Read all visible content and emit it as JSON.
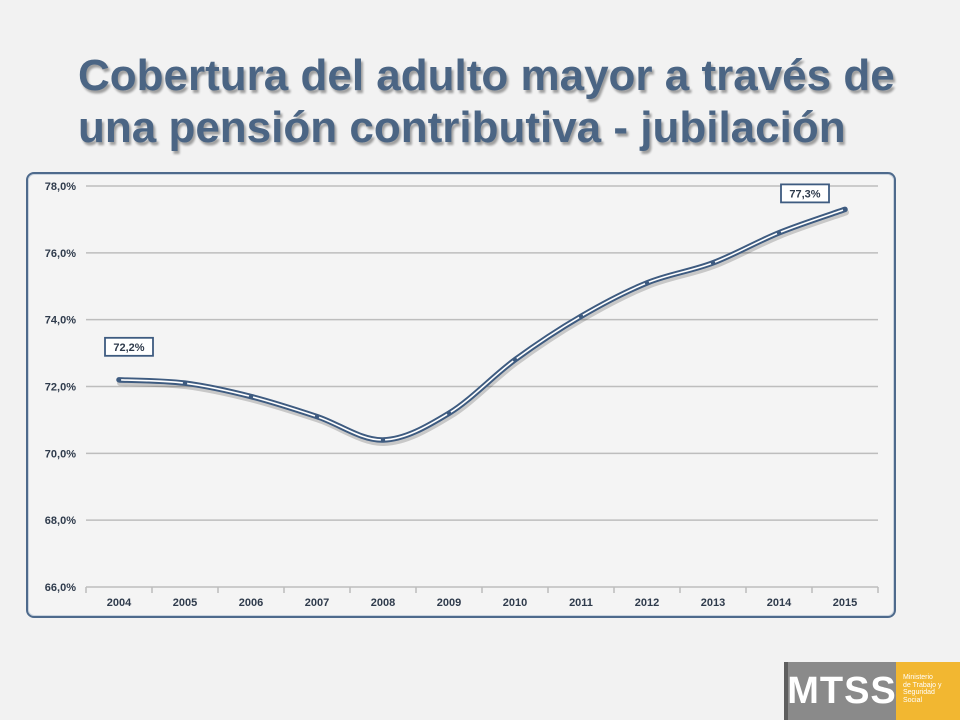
{
  "slide": {
    "title": "Cobertura del adulto mayor a través de una pensión contributiva - jubilación"
  },
  "logo": {
    "acronym": "MTSS",
    "name": "Ministerio\nde Trabajo y\nSeguridad\nSocial",
    "colors": {
      "mark": "#8a8a8a",
      "text_block": "#f2b731"
    }
  },
  "colors": {
    "title": "#4b6584",
    "line": "#3e5b80",
    "frame": "#4e6a8c",
    "grid": "#bdbdbd"
  },
  "chart_data": {
    "type": "line",
    "title": "",
    "xlabel": "",
    "ylabel": "",
    "categories": [
      "2004",
      "2005",
      "2006",
      "2007",
      "2008",
      "2009",
      "2010",
      "2011",
      "2012",
      "2013",
      "2014",
      "2015"
    ],
    "series": [
      {
        "values": [
          72.2,
          72.1,
          71.7,
          71.1,
          70.4,
          71.2,
          72.8,
          74.1,
          75.1,
          75.7,
          76.6,
          77.3
        ]
      }
    ],
    "ylim": [
      66,
      78
    ],
    "yticks": [
      66,
      68,
      70,
      72,
      74,
      76,
      78
    ],
    "ytick_labels": [
      "66,0%",
      "68,0%",
      "70,0%",
      "72,0%",
      "74,0%",
      "76,0%",
      "78,0%"
    ],
    "data_labels": [
      {
        "category": "2004",
        "text": "72,2%"
      },
      {
        "category": "2015",
        "text": "77,3%"
      }
    ],
    "grid": true,
    "legend": "none"
  }
}
